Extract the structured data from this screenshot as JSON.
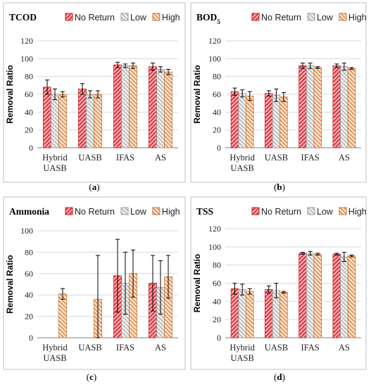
{
  "chart_data": [
    {
      "type": "bar",
      "title": "TCOD",
      "panel_label": "(a)",
      "ylabel": "Removal Ratio",
      "ylim": [
        0,
        120
      ],
      "yticks": [
        0,
        20,
        40,
        60,
        80,
        100,
        120
      ],
      "categories": [
        [
          "Hybrid",
          "UASB"
        ],
        [
          "UASB"
        ],
        [
          "IFAS"
        ],
        [
          "AS"
        ]
      ],
      "series": [
        {
          "name": "No Return",
          "values": [
            68,
            66,
            93,
            91
          ],
          "errors": [
            8,
            6,
            3,
            4
          ]
        },
        {
          "name": "Low",
          "values": [
            60,
            60,
            92,
            88
          ],
          "errors": [
            6,
            4,
            2,
            3
          ]
        },
        {
          "name": "High",
          "values": [
            60,
            60,
            92,
            85
          ],
          "errors": [
            3,
            4,
            3,
            3
          ]
        }
      ]
    },
    {
      "type": "bar",
      "title": "BOD",
      "title_sub": "5",
      "panel_label": "(b)",
      "ylabel": "Removal Ratio",
      "ylim": [
        0,
        120
      ],
      "yticks": [
        0,
        20,
        40,
        60,
        80,
        100,
        120
      ],
      "categories": [
        [
          "Hybrid",
          "UASB"
        ],
        [
          "UASB"
        ],
        [
          "IFAS"
        ],
        [
          "AS"
        ]
      ],
      "series": [
        {
          "name": "No Return",
          "values": [
            63,
            61,
            92,
            92
          ],
          "errors": [
            4,
            3,
            3,
            2
          ]
        },
        {
          "name": "Low",
          "values": [
            61,
            59,
            92,
            91
          ],
          "errors": [
            4,
            7,
            3,
            4
          ]
        },
        {
          "name": "High",
          "values": [
            58,
            57,
            90,
            89
          ],
          "errors": [
            5,
            5,
            1,
            1
          ]
        }
      ]
    },
    {
      "type": "bar",
      "title": "Ammonia",
      "panel_label": "(c)",
      "ylabel": "Removal Ratio",
      "ylim": [
        0,
        100
      ],
      "yticks": [
        0,
        20,
        40,
        60,
        80,
        100
      ],
      "categories": [
        [
          "Hybrid",
          "UASB"
        ],
        [
          "UASB"
        ],
        [
          "IFAS"
        ],
        [
          "AS"
        ]
      ],
      "series": [
        {
          "name": "No Return",
          "values": [
            null,
            null,
            58,
            51
          ],
          "errors": [
            null,
            null,
            34,
            26
          ]
        },
        {
          "name": "Low",
          "values": [
            null,
            null,
            51,
            47
          ],
          "errors": [
            null,
            null,
            29,
            25
          ]
        },
        {
          "name": "High",
          "values": [
            41,
            36,
            60,
            57
          ],
          "errors": [
            5,
            41,
            22,
            20
          ]
        }
      ]
    },
    {
      "type": "bar",
      "title": "TSS",
      "panel_label": "(d)",
      "ylabel": "Removal Ratio",
      "ylim": [
        0,
        120
      ],
      "yticks": [
        0,
        20,
        40,
        60,
        80,
        100,
        120
      ],
      "categories": [
        [
          "Hybrid",
          "UASB"
        ],
        [
          "UASB"
        ],
        [
          "IFAS"
        ],
        [
          "AS"
        ]
      ],
      "series": [
        {
          "name": "No Return",
          "values": [
            54,
            53,
            93,
            92
          ],
          "errors": [
            6,
            4,
            1,
            1
          ]
        },
        {
          "name": "Low",
          "values": [
            53,
            52,
            93,
            89
          ],
          "errors": [
            6,
            8,
            2,
            5
          ]
        },
        {
          "name": "High",
          "values": [
            51,
            50,
            92,
            90
          ],
          "errors": [
            3,
            1,
            1,
            1
          ]
        }
      ]
    }
  ],
  "colors": {
    "no_return_fill": "#e8303a",
    "no_return_stroke": "#c0202a",
    "low_fill": "#d4d4d4",
    "low_stroke": "#9a9a9a",
    "high_fill": "#f0a870",
    "high_stroke": "#c8753a",
    "frame": "#bfbfbf",
    "grid": "#d9d9d9"
  }
}
